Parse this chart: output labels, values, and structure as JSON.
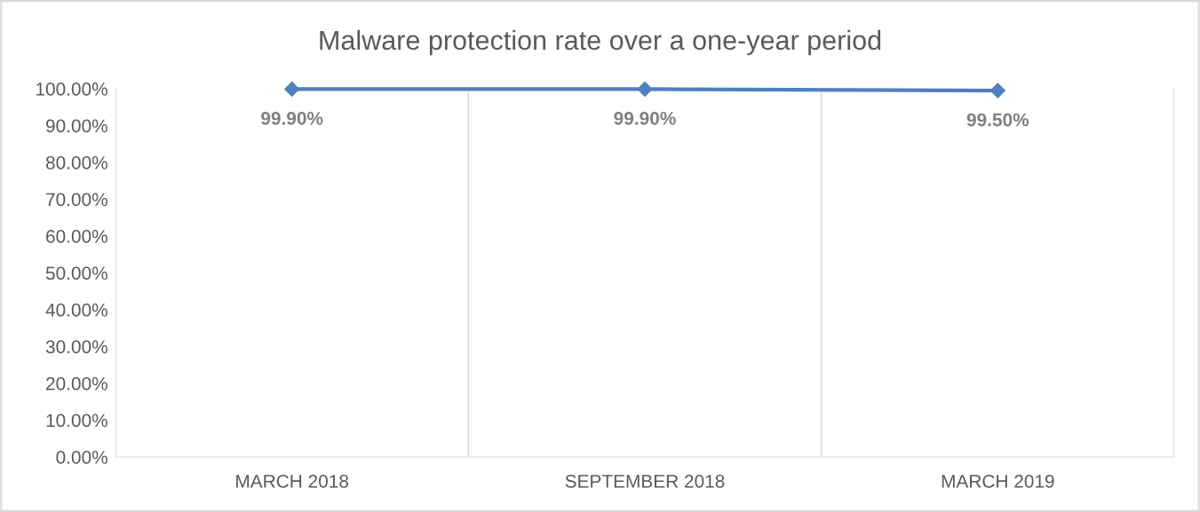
{
  "chart_data": {
    "type": "line",
    "title": "Malware protection rate over a one-year period",
    "categories": [
      "MARCH 2018",
      "SEPTEMBER 2018",
      "MARCH 2019"
    ],
    "series": [
      {
        "color": "#4f81bd",
        "values": [
          99.9,
          99.9,
          99.5
        ],
        "value_labels": [
          "99.90%",
          "99.90%",
          "99.50%"
        ]
      }
    ],
    "ylim": [
      0,
      100
    ],
    "yticks": [
      {
        "value": 0,
        "label": "0.00%"
      },
      {
        "value": 10,
        "label": "10.00%"
      },
      {
        "value": 20,
        "label": "20.00%"
      },
      {
        "value": 30,
        "label": "30.00%"
      },
      {
        "value": 40,
        "label": "40.00%"
      },
      {
        "value": 50,
        "label": "50.00%"
      },
      {
        "value": 60,
        "label": "60.00%"
      },
      {
        "value": 70,
        "label": "70.00%"
      },
      {
        "value": 80,
        "label": "80.00%"
      },
      {
        "value": 90,
        "label": "90.00%"
      },
      {
        "value": 100,
        "label": "100.00%"
      }
    ],
    "grid": "x",
    "marker": "diamond",
    "line_style": "solid"
  }
}
